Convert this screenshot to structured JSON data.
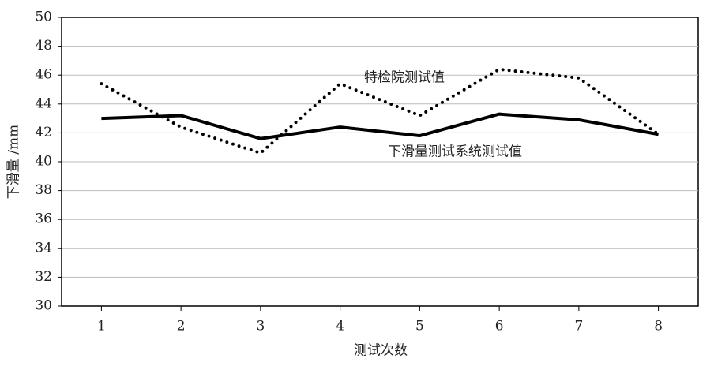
{
  "chart_data": {
    "type": "line",
    "x_label": "测试次数",
    "y_label": "下滑量 /mm",
    "x": [
      1,
      2,
      3,
      4,
      5,
      6,
      7,
      8
    ],
    "xlim": [
      0.5,
      8.5
    ],
    "xticks": [
      1,
      2,
      3,
      4,
      5,
      6,
      7,
      8
    ],
    "ylim": [
      30,
      50
    ],
    "yticks": [
      30,
      32,
      34,
      36,
      38,
      40,
      42,
      44,
      46,
      48,
      50
    ],
    "grid": true,
    "series": [
      {
        "name": "特检院测试值",
        "color": "#000000",
        "style": "dotted",
        "values": [
          45.4,
          42.4,
          40.6,
          45.4,
          43.2,
          46.4,
          45.8,
          41.9
        ]
      },
      {
        "name": "下滑量测试系统测试值",
        "color": "#000000",
        "style": "solid",
        "values": [
          43.0,
          43.2,
          41.6,
          42.4,
          41.8,
          43.3,
          42.9,
          41.9
        ]
      }
    ]
  }
}
